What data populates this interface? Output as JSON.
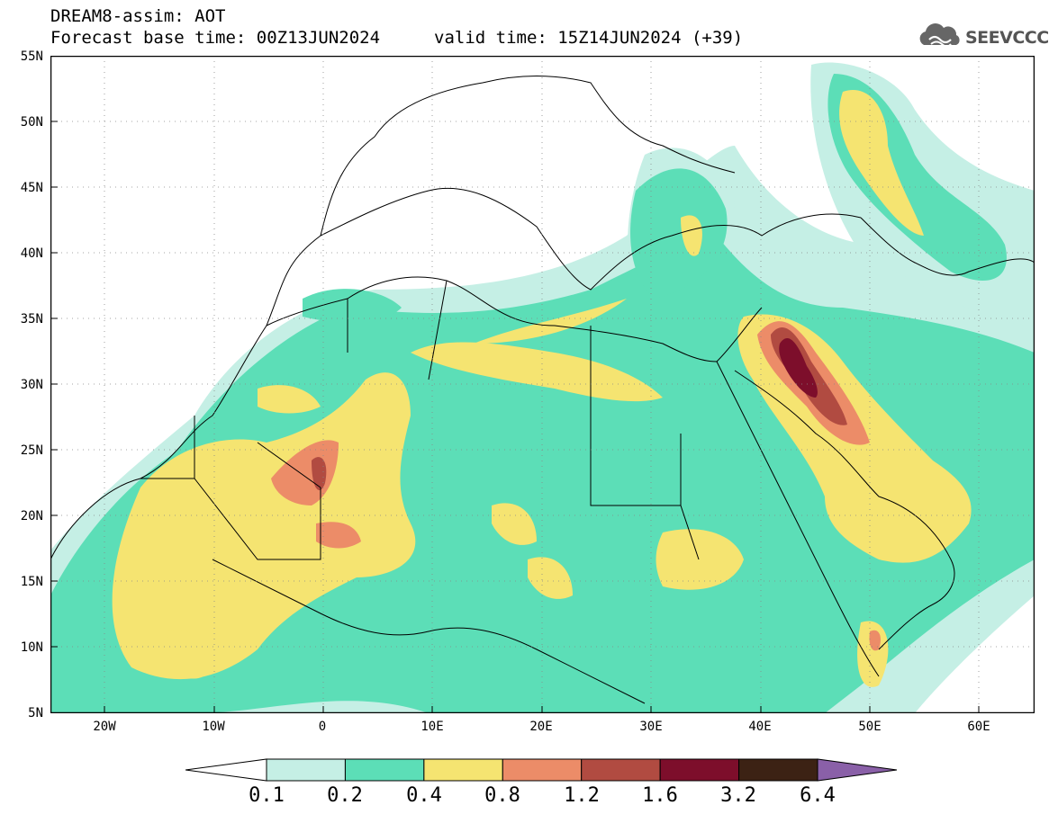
{
  "header": {
    "model_title": "DREAM8-assim: AOT",
    "base_time": "Forecast base time: 00Z13JUN2024",
    "valid_time": "valid time: 15Z14JUN2024 (+39)",
    "logo_text": "SEEVCCC",
    "logo_icon": "cloud-icon"
  },
  "axes": {
    "lat_labels": [
      "55N",
      "50N",
      "45N",
      "40N",
      "35N",
      "30N",
      "25N",
      "20N",
      "15N",
      "10N",
      "5N"
    ],
    "lon_labels": [
      "20W",
      "10W",
      "0",
      "10E",
      "20E",
      "30E",
      "40E",
      "50E",
      "60E"
    ]
  },
  "map_extent": {
    "lon_min": -25,
    "lon_max": 65,
    "lat_min": 5,
    "lat_max": 55
  },
  "colorbar": {
    "levels": [
      "0.1",
      "0.2",
      "0.4",
      "0.8",
      "1.2",
      "1.6",
      "3.2",
      "6.4"
    ],
    "colors": [
      "#ffffff",
      "#c5efe5",
      "#5cdeb7",
      "#f5e471",
      "#ec8c68",
      "#b14b41",
      "#7d0e2b",
      "#3c2214",
      "#8a60a8"
    ]
  }
}
